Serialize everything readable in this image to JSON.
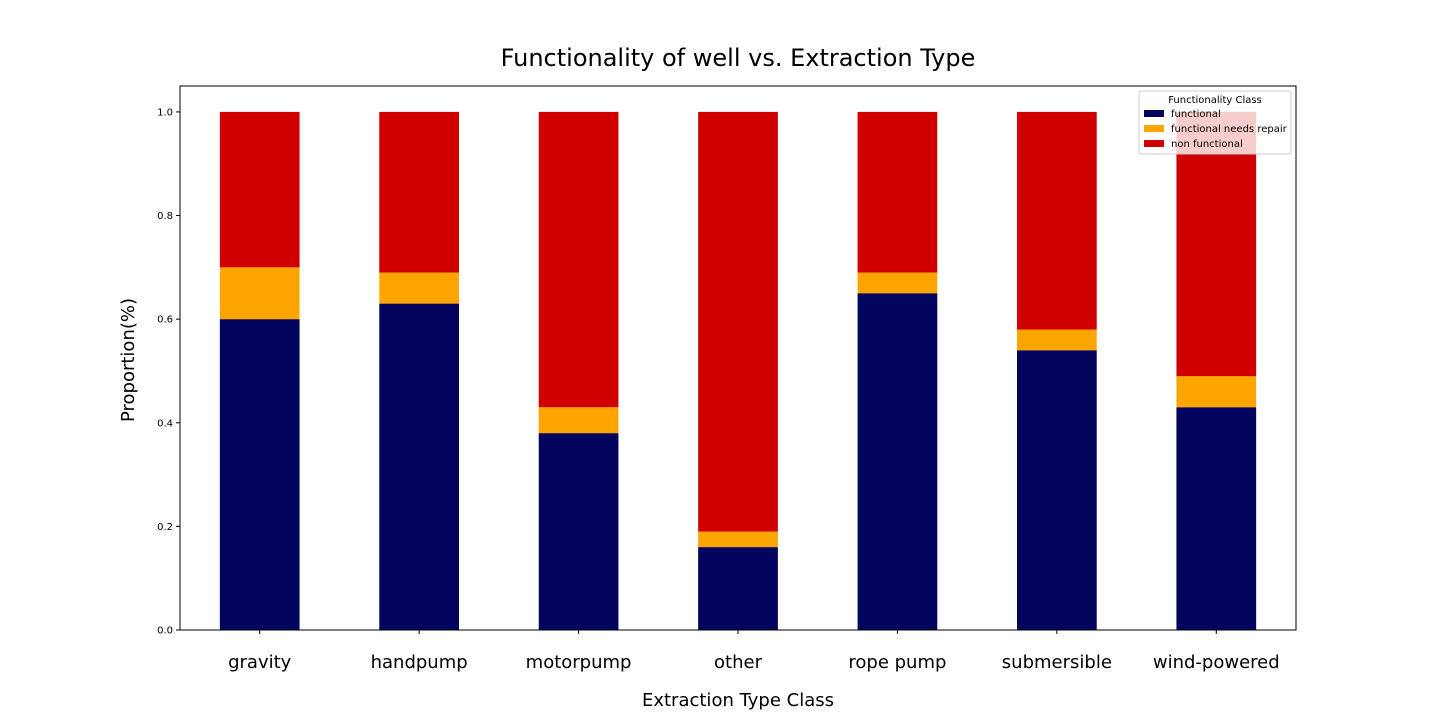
{
  "chart_data": {
    "type": "bar",
    "stacked": true,
    "title": "Functionality of well vs. Extraction Type",
    "xlabel": "Extraction Type Class",
    "ylabel": "Proportion(%)",
    "categories": [
      "gravity",
      "handpump",
      "motorpump",
      "other",
      "rope pump",
      "submersible",
      "wind-powered"
    ],
    "series": [
      {
        "name": "functional",
        "color": "#03045e",
        "values": [
          0.6,
          0.63,
          0.38,
          0.16,
          0.65,
          0.54,
          0.43
        ]
      },
      {
        "name": "functional needs repair",
        "color": "#ffa500",
        "values": [
          0.1,
          0.06,
          0.05,
          0.03,
          0.04,
          0.04,
          0.06
        ]
      },
      {
        "name": "non functional",
        "color": "#d00000",
        "values": [
          0.3,
          0.31,
          0.57,
          0.81,
          0.31,
          0.42,
          0.51
        ]
      }
    ],
    "ylim": [
      0,
      1.05
    ],
    "yticks": [
      0.0,
      0.2,
      0.4,
      0.6,
      0.8,
      1.0
    ],
    "ytick_labels": [
      "0.0",
      "0.2",
      "0.4",
      "0.6",
      "0.8",
      "1.0"
    ],
    "grid": false,
    "legend": {
      "title": "Functionality Class",
      "position": "top-right"
    }
  }
}
